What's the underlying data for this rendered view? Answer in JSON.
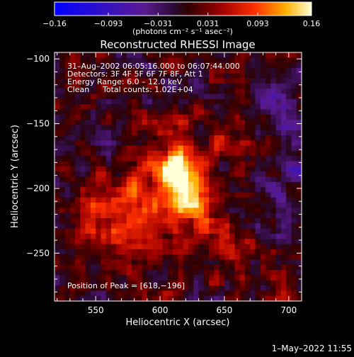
{
  "chart_data": {
    "type": "heatmap",
    "title": "Reconstructed RHESSI Image",
    "xlabel": "Heliocentric X (arcsec)",
    "ylabel": "Heliocentric Y (arcsec)",
    "xlim": [
      518,
      710
    ],
    "ylim": [
      -287,
      -95
    ],
    "x_ticks": [
      550,
      600,
      650,
      700
    ],
    "y_ticks": [
      -100,
      -150,
      -200,
      -250
    ],
    "grid": false,
    "colorbar": {
      "range": [
        -0.16,
        0.16
      ],
      "tick_values": [
        -0.16,
        -0.093,
        -0.031,
        0.031,
        0.093,
        0.16
      ],
      "tick_labels": [
        "−0.16",
        "−0.093",
        "−0.031",
        "0.031",
        "0.093",
        "0.16"
      ],
      "unit_label": "(photons cm⁻² s⁻¹ asec⁻²)"
    },
    "annotations": {
      "time_range": "31–Aug–2002 06:05:16.000 to 06:07:44.000",
      "detectors": "Detectors: 3F 4F 5F 6F 7F 8F, Att 1",
      "energy_range": "Energy Range: 6.0 – 12.0 keV",
      "method": "Clean",
      "total_counts": "Total counts: 1.02E+04",
      "peak": "Position of Peak = [618,−196]"
    },
    "peak_position": [
      618,
      -196
    ],
    "peak_value": 0.16
  },
  "footer": {
    "timestamp": "1–May–2022 11:55"
  }
}
